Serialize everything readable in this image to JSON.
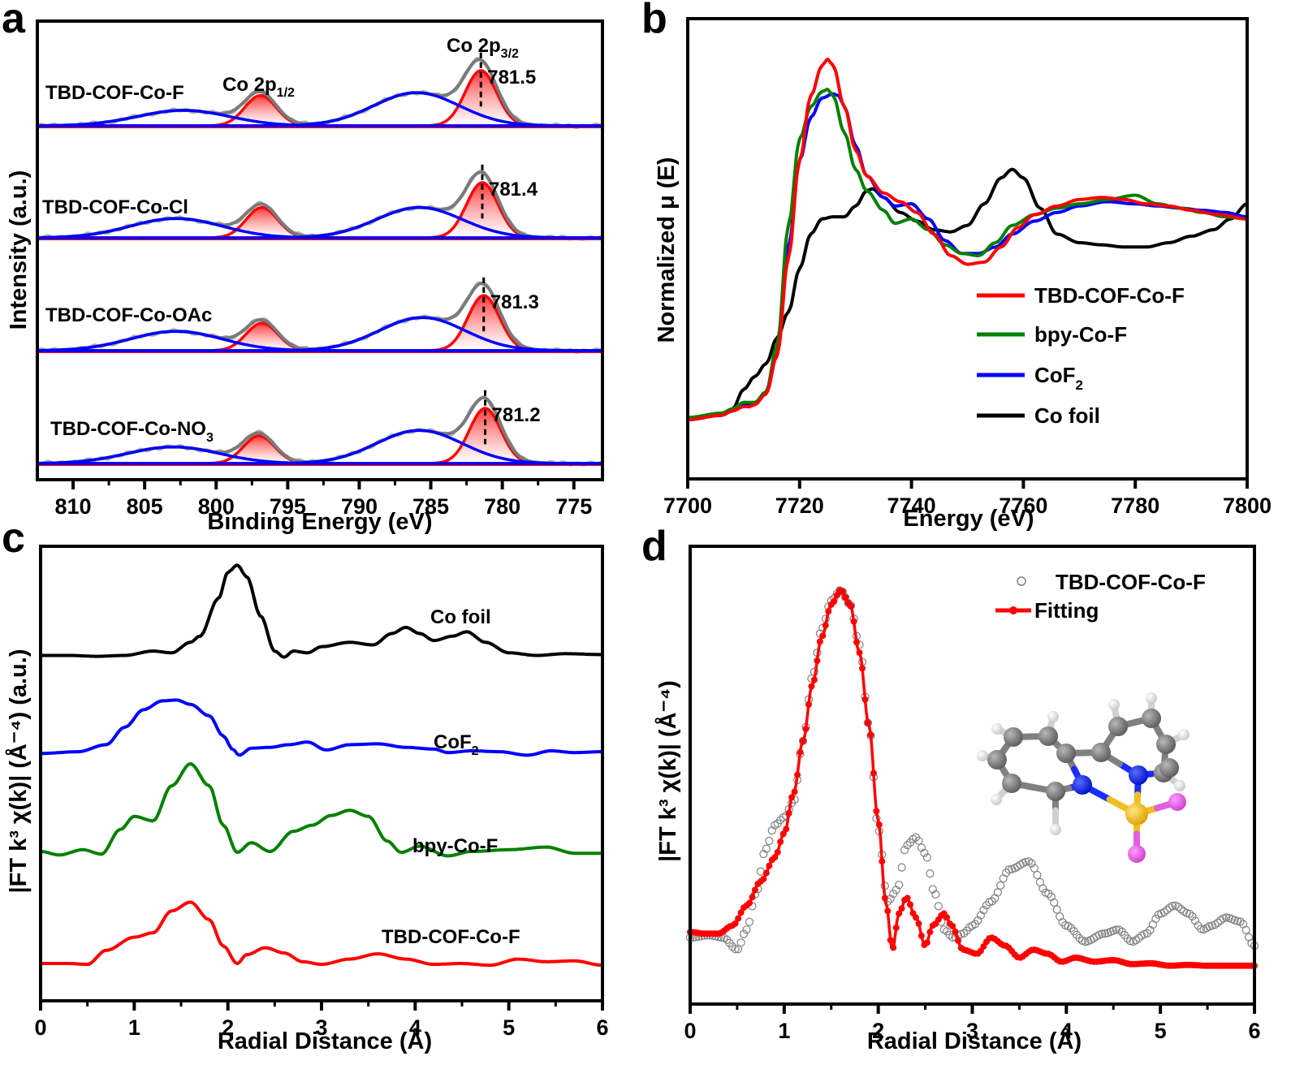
{
  "chart_data": [
    {
      "panel": "a",
      "type": "line",
      "title": "",
      "xlabel": "Binding Energy (eV)",
      "ylabel": "Intensity (a.u.)",
      "xlim": [
        812.5,
        773
      ],
      "x_reversed": true,
      "xticks": [
        810,
        805,
        800,
        795,
        790,
        785,
        780,
        775
      ],
      "xtick_labels": [
        "810",
        "805",
        "800",
        "795",
        "790",
        "785",
        "780",
        "775"
      ],
      "annotations": {
        "p12": "Co 2p",
        "p12_sub": "1/2",
        "p32": "Co 2p",
        "p32_sub": "3/2"
      },
      "colors": {
        "raw": "#b4b4b4",
        "envelope": "#7a7a7a",
        "main_peak": "#ff0000",
        "satellite": "#0000ff"
      },
      "spectra": [
        {
          "name": "TBD-COF-Co-F",
          "sub": "",
          "peak_label": "781.5",
          "peak_2p32": 781.5,
          "amp_2p32": 1.0,
          "peak_2p12": 796.9,
          "amp_2p12": 0.55,
          "sat1_center": 786.0,
          "sat1_amp": 0.6,
          "sat2_center": 802.3,
          "sat2_amp": 0.28
        },
        {
          "name": "TBD-COF-Co-Cl",
          "sub": "",
          "peak_label": "781.4",
          "peak_2p32": 781.4,
          "amp_2p32": 1.0,
          "peak_2p12": 796.8,
          "amp_2p12": 0.55,
          "sat1_center": 785.8,
          "sat1_amp": 0.55,
          "sat2_center": 802.8,
          "sat2_amp": 0.35
        },
        {
          "name": "TBD-COF-Co-OAc",
          "sub": "",
          "peak_label": "781.3",
          "peak_2p32": 781.3,
          "amp_2p32": 1.0,
          "peak_2p12": 796.8,
          "amp_2p12": 0.5,
          "sat1_center": 785.6,
          "sat1_amp": 0.6,
          "sat2_center": 802.8,
          "sat2_amp": 0.35
        },
        {
          "name": "TBD-COF-Co-NO",
          "sub": "3",
          "peak_label": "781.2",
          "peak_2p32": 781.2,
          "amp_2p32": 1.0,
          "peak_2p12": 797.0,
          "amp_2p12": 0.5,
          "sat1_center": 785.8,
          "sat1_amp": 0.6,
          "sat2_center": 803.0,
          "sat2_amp": 0.3
        }
      ]
    },
    {
      "panel": "b",
      "type": "line",
      "title": "",
      "xlabel": "Energy (eV)",
      "ylabel": "Normalized μ (E)",
      "xlim": [
        7700,
        7800
      ],
      "ylim": [
        -0.1,
        1.75
      ],
      "xticks": [
        7700,
        7720,
        7740,
        7760,
        7780,
        7800
      ],
      "xtick_labels": [
        "7700",
        "7720",
        "7740",
        "7760",
        "7780",
        "7800"
      ],
      "legend_position": "center-right",
      "series": [
        {
          "name": "TBD-COF-Co-F",
          "sub": "",
          "color": "#ff0000",
          "x": [
            7700,
            7706,
            7708,
            7710,
            7711,
            7712,
            7714,
            7716,
            7718,
            7720,
            7722,
            7724,
            7725,
            7726,
            7728,
            7730,
            7732,
            7735,
            7738,
            7741,
            7744,
            7747,
            7750,
            7753,
            7756,
            7759,
            7762,
            7766,
            7770,
            7774,
            7778,
            7782,
            7786,
            7790,
            7795,
            7800
          ],
          "y": [
            0.0,
            0.02,
            0.04,
            0.06,
            0.06,
            0.07,
            0.12,
            0.3,
            0.75,
            1.2,
            1.5,
            1.64,
            1.67,
            1.64,
            1.45,
            1.25,
            1.13,
            1.05,
            1.01,
            0.96,
            0.86,
            0.76,
            0.72,
            0.73,
            0.8,
            0.89,
            0.95,
            0.99,
            1.02,
            1.03,
            1.02,
            1.0,
            0.99,
            0.97,
            0.95,
            0.93
          ]
        },
        {
          "name": "bpy-Co-F",
          "sub": "",
          "color": "#008000",
          "x": [
            7700,
            7706,
            7708,
            7710,
            7711,
            7712,
            7714,
            7716,
            7718,
            7720,
            7722,
            7724,
            7725,
            7726,
            7728,
            7730,
            7732,
            7735,
            7737,
            7740,
            7743,
            7746,
            7749,
            7752,
            7755,
            7758,
            7762,
            7766,
            7770,
            7775,
            7780,
            7784,
            7788,
            7792,
            7796,
            7800
          ],
          "y": [
            0.01,
            0.03,
            0.05,
            0.08,
            0.08,
            0.08,
            0.13,
            0.35,
            0.9,
            1.3,
            1.45,
            1.52,
            1.53,
            1.5,
            1.33,
            1.16,
            1.06,
            0.97,
            0.91,
            0.93,
            0.88,
            0.81,
            0.77,
            0.76,
            0.82,
            0.9,
            0.95,
            0.98,
            1.0,
            1.02,
            1.04,
            1.0,
            0.98,
            0.96,
            0.94,
            0.93
          ]
        },
        {
          "name": "CoF",
          "sub": "2",
          "color": "#0000ff",
          "x": [
            7700,
            7706,
            7708,
            7710,
            7711,
            7712,
            7714,
            7716,
            7718,
            7720,
            7722,
            7724,
            7726,
            7727,
            7728,
            7730,
            7732,
            7735,
            7737,
            7740,
            7743,
            7746,
            7749,
            7752,
            7755,
            7758,
            7762,
            7766,
            7770,
            7775,
            7780,
            7784,
            7788,
            7792,
            7796,
            7800
          ],
          "y": [
            0.0,
            0.02,
            0.04,
            0.07,
            0.07,
            0.07,
            0.12,
            0.3,
            0.8,
            1.2,
            1.4,
            1.49,
            1.51,
            1.5,
            1.45,
            1.27,
            1.13,
            1.03,
            0.99,
            1.0,
            0.93,
            0.83,
            0.77,
            0.77,
            0.8,
            0.86,
            0.92,
            0.96,
            0.99,
            1.01,
            1.0,
            0.99,
            0.98,
            0.97,
            0.96,
            0.94
          ]
        },
        {
          "name": "Co foil",
          "sub": "",
          "color": "#000000",
          "x": [
            7700,
            7706,
            7708,
            7710,
            7712,
            7714,
            7716,
            7718,
            7720,
            7722,
            7724,
            7726,
            7728,
            7730,
            7732,
            7733,
            7735,
            7738,
            7741,
            7744,
            7747,
            7750,
            7753,
            7756,
            7758,
            7760,
            7763,
            7766,
            7770,
            7774,
            7778,
            7782,
            7786,
            7790,
            7794,
            7797,
            7800
          ],
          "y": [
            0.0,
            0.02,
            0.05,
            0.14,
            0.2,
            0.26,
            0.38,
            0.5,
            0.7,
            0.86,
            0.93,
            0.94,
            0.94,
            0.99,
            1.06,
            1.07,
            1.03,
            0.96,
            0.92,
            0.88,
            0.87,
            0.9,
            1.0,
            1.12,
            1.16,
            1.12,
            0.98,
            0.86,
            0.82,
            0.81,
            0.8,
            0.8,
            0.82,
            0.85,
            0.88,
            0.93,
            1.0
          ]
        }
      ]
    },
    {
      "panel": "c",
      "type": "line",
      "title": "",
      "xlabel": "Radial Distance (Å)",
      "ylabel": "|FT k³ χ(k)| (Å⁻⁴) (a.u.)",
      "xlim": [
        0,
        6
      ],
      "xticks": [
        0,
        1,
        2,
        3,
        4,
        5,
        6
      ],
      "xtick_labels": [
        "0",
        "1",
        "2",
        "3",
        "4",
        "5",
        "6"
      ],
      "series": [
        {
          "name": "Co foil",
          "sub": "",
          "color": "#000000",
          "offset": 3.3,
          "x": [
            0,
            0.3,
            0.6,
            0.9,
            1.2,
            1.4,
            1.6,
            1.7,
            1.9,
            2.0,
            2.1,
            2.2,
            2.35,
            2.5,
            2.6,
            2.7,
            2.85,
            3.0,
            3.3,
            3.55,
            3.75,
            3.9,
            4.05,
            4.2,
            4.4,
            4.55,
            4.75,
            5.0,
            5.3,
            5.6,
            6.0
          ],
          "y": [
            0.0,
            0.0,
            -0.01,
            0.0,
            0.05,
            0.03,
            0.15,
            0.22,
            0.65,
            0.95,
            1.03,
            0.9,
            0.45,
            0.05,
            -0.02,
            0.05,
            0.03,
            0.1,
            0.15,
            0.12,
            0.25,
            0.32,
            0.25,
            0.17,
            0.22,
            0.27,
            0.15,
            0.03,
            0.0,
            0.02,
            0.01
          ]
        },
        {
          "name": "CoF",
          "sub": "2",
          "color": "#0000ff",
          "offset": 2.25,
          "x": [
            0,
            0.4,
            0.7,
            0.9,
            1.1,
            1.3,
            1.45,
            1.6,
            1.8,
            1.95,
            2.05,
            2.12,
            2.25,
            2.45,
            2.65,
            2.85,
            3.05,
            3.3,
            3.6,
            3.9,
            4.2,
            4.35,
            4.6,
            4.9,
            5.2,
            5.45,
            5.7,
            6.0
          ],
          "y": [
            0.0,
            0.02,
            0.1,
            0.3,
            0.5,
            0.6,
            0.61,
            0.56,
            0.43,
            0.2,
            0.05,
            -0.02,
            0.06,
            0.07,
            0.1,
            0.13,
            0.04,
            0.1,
            0.11,
            0.07,
            0.05,
            0.01,
            0.03,
            0.02,
            -0.02,
            0.03,
            0.01,
            0.02
          ]
        },
        {
          "name": "bpy-Co-F",
          "sub": "",
          "color": "#008000",
          "offset": 1.2,
          "x": [
            0,
            0.2,
            0.45,
            0.65,
            0.85,
            1.0,
            1.2,
            1.4,
            1.6,
            1.8,
            1.95,
            2.1,
            2.25,
            2.45,
            2.7,
            2.9,
            3.1,
            3.3,
            3.5,
            3.7,
            3.85,
            4.05,
            4.35,
            4.6,
            5.0,
            5.4,
            5.7,
            6.0
          ],
          "y": [
            0.0,
            -0.04,
            0.02,
            -0.03,
            0.25,
            0.4,
            0.35,
            0.75,
            1.0,
            0.75,
            0.3,
            -0.01,
            0.1,
            0.0,
            0.23,
            0.3,
            0.41,
            0.47,
            0.4,
            0.12,
            -0.01,
            0.06,
            -0.05,
            0.0,
            0.02,
            0.05,
            -0.02,
            -0.02
          ]
        },
        {
          "name": "TBD-COF-Co-F",
          "sub": "",
          "color": "#ff0000",
          "offset": 0.0,
          "x": [
            0,
            0.3,
            0.5,
            0.7,
            1.0,
            1.2,
            1.4,
            1.6,
            1.8,
            1.95,
            2.1,
            2.2,
            2.4,
            2.6,
            2.8,
            3.0,
            3.3,
            3.6,
            3.9,
            4.2,
            4.5,
            4.8,
            5.1,
            5.4,
            5.7,
            6.0
          ],
          "y": [
            0.0,
            0.0,
            -0.01,
            0.15,
            0.3,
            0.35,
            0.6,
            0.7,
            0.5,
            0.2,
            0.0,
            0.1,
            0.18,
            0.12,
            0.02,
            -0.01,
            0.05,
            0.11,
            0.05,
            -0.01,
            0.0,
            -0.02,
            0.05,
            0.02,
            0.03,
            -0.02
          ]
        }
      ]
    },
    {
      "panel": "d",
      "type": "scatter",
      "title": "",
      "xlabel": "Radial Distance (Å)",
      "ylabel": "|FT k³ χ(k)| (Å⁻⁴)",
      "xlim": [
        0,
        6
      ],
      "ylim": [
        -0.25,
        4.7
      ],
      "xticks": [
        0,
        1,
        2,
        3,
        4,
        5,
        6
      ],
      "xtick_labels": [
        "0",
        "1",
        "2",
        "3",
        "4",
        "5",
        "6"
      ],
      "legend_position": "top-right",
      "inset": "molecular structure of bipyridine-CoF2 complex (C grey, N blue, Co yellow, F magenta, H white)",
      "series": [
        {
          "name": "TBD-COF-Co-F",
          "marker": "open-circle",
          "color": "#808080",
          "x": [
            0,
            0.2,
            0.35,
            0.5,
            0.6,
            0.7,
            0.8,
            0.9,
            1.0,
            1.1,
            1.2,
            1.3,
            1.4,
            1.5,
            1.6,
            1.7,
            1.8,
            1.9,
            2.0,
            2.1,
            2.2,
            2.3,
            2.4,
            2.5,
            2.6,
            2.7,
            2.8,
            2.9,
            3.0,
            3.2,
            3.4,
            3.6,
            3.8,
            4.0,
            4.2,
            4.4,
            4.55,
            4.7,
            4.85,
            5.0,
            5.15,
            5.3,
            5.45,
            5.55,
            5.7,
            5.85,
            6.0
          ],
          "y": [
            0.15,
            0.18,
            0.15,
            0.0,
            0.25,
            0.7,
            1.25,
            1.55,
            1.65,
            1.85,
            2.6,
            3.4,
            4.0,
            4.35,
            4.48,
            4.3,
            3.8,
            2.8,
            1.5,
            0.6,
            0.75,
            1.3,
            1.4,
            1.2,
            0.7,
            0.25,
            0.15,
            0.2,
            0.3,
            0.6,
            1.0,
            1.1,
            0.7,
            0.3,
            0.1,
            0.2,
            0.25,
            0.1,
            0.2,
            0.45,
            0.55,
            0.45,
            0.25,
            0.3,
            0.4,
            0.35,
            0.05
          ]
        },
        {
          "name": "Fitting",
          "marker": "filled-circle-line",
          "color": "#ff0000",
          "x": [
            0,
            0.15,
            0.3,
            0.45,
            0.6,
            0.75,
            0.9,
            1.0,
            1.1,
            1.2,
            1.3,
            1.4,
            1.5,
            1.6,
            1.7,
            1.8,
            1.9,
            2.0,
            2.08,
            2.15,
            2.22,
            2.3,
            2.4,
            2.5,
            2.58,
            2.7,
            2.78,
            2.9,
            3.05,
            3.2,
            3.35,
            3.5,
            3.65,
            3.8,
            3.95,
            4.1,
            4.3,
            4.5,
            4.7,
            4.9,
            5.1,
            5.3,
            5.5,
            5.75,
            6.0
          ],
          "y": [
            0.22,
            0.2,
            0.2,
            0.3,
            0.55,
            0.85,
            1.15,
            1.45,
            1.95,
            2.6,
            3.3,
            3.9,
            4.3,
            4.48,
            4.3,
            3.7,
            2.8,
            1.6,
            0.6,
            0.0,
            0.45,
            0.65,
            0.4,
            0.05,
            0.3,
            0.45,
            0.3,
            0.0,
            -0.05,
            0.15,
            0.05,
            -0.1,
            0.0,
            -0.05,
            -0.15,
            -0.1,
            -0.15,
            -0.13,
            -0.18,
            -0.17,
            -0.2,
            -0.19,
            -0.2,
            -0.2,
            -0.2
          ]
        }
      ]
    }
  ],
  "panel_labels": [
    "a",
    "b",
    "c",
    "d"
  ]
}
